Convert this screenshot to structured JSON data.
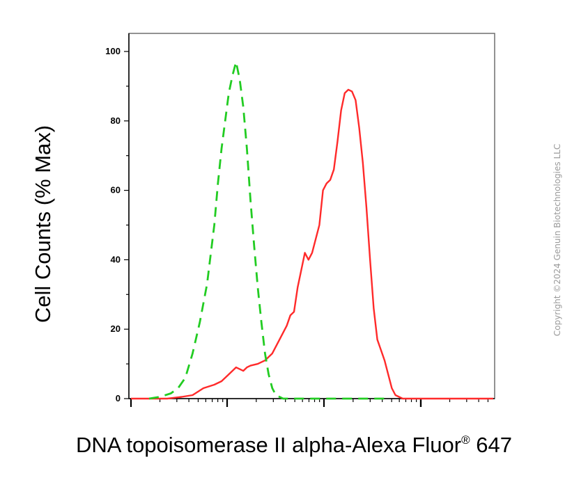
{
  "chart_data": {
    "type": "line",
    "xlabel": "DNA topoisomerase II alpha-Alexa Fluor",
    "xlabel_suffix": "647",
    "xlabel_superscript": "®",
    "ylabel": "Cell Counts (% Max)",
    "y_ticks": [
      "0",
      "20",
      "40",
      "60",
      "80",
      "100"
    ],
    "ylim": [
      0,
      105
    ],
    "x_scale": "log",
    "x_tick_labels": [],
    "grid": false,
    "series": [
      {
        "color": "#ff2a2a",
        "style": "solid",
        "points": [
          [
            0.0,
            0
          ],
          [
            0.1,
            0
          ],
          [
            0.14,
            0.5
          ],
          [
            0.17,
            1
          ],
          [
            0.2,
            3
          ],
          [
            0.23,
            4
          ],
          [
            0.25,
            5
          ],
          [
            0.27,
            7
          ],
          [
            0.28,
            8
          ],
          [
            0.29,
            9
          ],
          [
            0.3,
            8.5
          ],
          [
            0.31,
            8
          ],
          [
            0.32,
            9
          ],
          [
            0.33,
            9.5
          ],
          [
            0.35,
            10
          ],
          [
            0.37,
            11
          ],
          [
            0.39,
            13
          ],
          [
            0.41,
            17
          ],
          [
            0.43,
            21
          ],
          [
            0.44,
            24
          ],
          [
            0.45,
            25
          ],
          [
            0.46,
            32
          ],
          [
            0.47,
            37
          ],
          [
            0.48,
            42
          ],
          [
            0.49,
            40
          ],
          [
            0.5,
            42
          ],
          [
            0.52,
            50
          ],
          [
            0.53,
            60
          ],
          [
            0.54,
            62
          ],
          [
            0.55,
            63
          ],
          [
            0.56,
            66
          ],
          [
            0.57,
            74
          ],
          [
            0.58,
            83
          ],
          [
            0.59,
            88
          ],
          [
            0.6,
            89
          ],
          [
            0.61,
            88.5
          ],
          [
            0.62,
            86
          ],
          [
            0.63,
            78
          ],
          [
            0.64,
            68
          ],
          [
            0.65,
            55
          ],
          [
            0.66,
            40
          ],
          [
            0.67,
            26
          ],
          [
            0.68,
            17
          ],
          [
            0.69,
            14
          ],
          [
            0.7,
            11
          ],
          [
            0.71,
            7
          ],
          [
            0.72,
            3
          ],
          [
            0.73,
            1
          ],
          [
            0.75,
            0
          ],
          [
            1.0,
            0
          ]
        ]
      },
      {
        "color": "#22cc22",
        "style": "dashed",
        "points": [
          [
            0.05,
            0
          ],
          [
            0.08,
            0.5
          ],
          [
            0.11,
            1.5
          ],
          [
            0.13,
            3
          ],
          [
            0.15,
            6
          ],
          [
            0.17,
            13
          ],
          [
            0.19,
            22
          ],
          [
            0.21,
            33
          ],
          [
            0.23,
            50
          ],
          [
            0.24,
            62
          ],
          [
            0.25,
            72
          ],
          [
            0.26,
            80
          ],
          [
            0.27,
            88
          ],
          [
            0.28,
            93
          ],
          [
            0.29,
            97
          ],
          [
            0.3,
            92
          ],
          [
            0.31,
            84
          ],
          [
            0.32,
            72
          ],
          [
            0.33,
            57
          ],
          [
            0.34,
            44
          ],
          [
            0.35,
            32
          ],
          [
            0.36,
            22
          ],
          [
            0.37,
            13
          ],
          [
            0.38,
            7
          ],
          [
            0.39,
            3
          ],
          [
            0.4,
            1
          ],
          [
            0.42,
            0
          ],
          [
            0.6,
            0
          ],
          [
            0.7,
            0
          ]
        ]
      }
    ]
  },
  "watermark": "Copyright ©2024 Genuin Biotechnologies LLC"
}
